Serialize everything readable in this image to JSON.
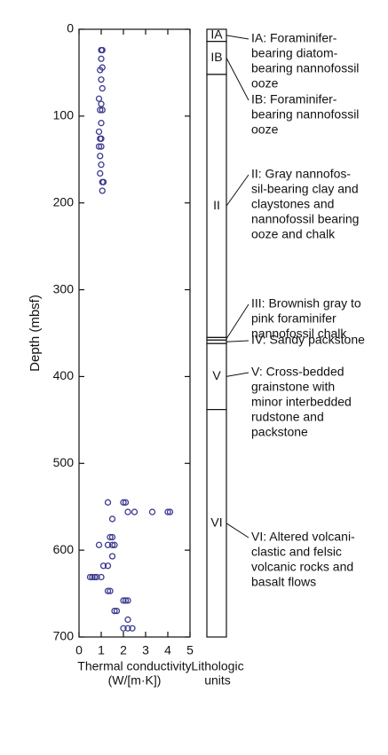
{
  "chart_data": {
    "type": "scatter",
    "ylabel": "Depth (mbsf)",
    "xlabel": [
      "Thermal conductivity",
      "(W/[m·K])"
    ],
    "xlim": [
      0,
      5
    ],
    "xticks": [
      0,
      1,
      2,
      3,
      4,
      5
    ],
    "ylim": [
      0,
      700
    ],
    "yticks": [
      0,
      100,
      200,
      300,
      400,
      500,
      600,
      700
    ],
    "y_inverted": true,
    "color": "#3b3b8f",
    "x": [
      1.0,
      1.05,
      1.0,
      1.05,
      0.95,
      1.0,
      1.05,
      0.9,
      1.0,
      0.95,
      1.05,
      1.0,
      0.9,
      0.95,
      1.0,
      0.9,
      1.0,
      0.95,
      1.0,
      0.95,
      1.1,
      1.05,
      1.05,
      1.3,
      2.0,
      2.1,
      2.2,
      2.5,
      3.3,
      4.0,
      4.1,
      1.5,
      1.5,
      1.4,
      0.9,
      1.3,
      1.5,
      1.6,
      1.5,
      1.1,
      1.3,
      0.6,
      0.5,
      0.7,
      0.8,
      1.0,
      1.3,
      1.4,
      2.1,
      2.0,
      2.2,
      1.7,
      1.6,
      2.2,
      2.0,
      2.4,
      2.2
    ],
    "y": [
      24,
      24,
      34,
      44,
      47,
      58,
      68,
      80,
      86,
      93,
      93,
      108,
      118,
      126,
      126,
      135,
      135,
      146,
      156,
      166,
      176,
      176,
      186,
      545,
      545,
      545,
      556,
      556,
      556,
      556,
      556,
      564,
      585,
      585,
      594,
      594,
      594,
      594,
      607,
      618,
      618,
      631,
      631,
      631,
      631,
      631,
      647,
      647,
      658,
      658,
      658,
      670,
      670,
      680,
      690,
      690,
      690
    ]
  },
  "lithology": {
    "title": [
      "Lithologic",
      "units"
    ],
    "units": [
      {
        "label": "IA",
        "top": 0,
        "bottom": 14,
        "description": [
          "IA: Foraminifer-",
          "bearing diatom-",
          "bearing nannofossil",
          "ooze"
        ]
      },
      {
        "label": "IB",
        "top": 14,
        "bottom": 52,
        "description": [
          "IB: Foraminifer-",
          "bearing nannofossil",
          "ooze"
        ]
      },
      {
        "label": "II",
        "top": 52,
        "bottom": 355,
        "description": [
          "II: Gray nannofos-",
          "sil-bearing clay and",
          "claystones and",
          "nannofossil bearing",
          "ooze and chalk"
        ]
      },
      {
        "top": 355,
        "bottom": 358,
        "description": [
          "III: Brownish gray to",
          "pink foraminifer",
          "nannofossil chalk"
        ]
      },
      {
        "top": 358,
        "bottom": 362,
        "description": [
          "IV: Sandy packstone"
        ]
      },
      {
        "label": "V",
        "top": 362,
        "bottom": 438,
        "description": [
          "V: Cross-bedded",
          "grainstone with",
          "minor interbedded",
          "rudstone and",
          "packstone"
        ]
      },
      {
        "label": "VI",
        "top": 438,
        "bottom": 700,
        "description": [
          "VI: Altered volcani-",
          "clastic and felsic",
          "volcanic rocks and",
          "basalt flows"
        ]
      }
    ]
  }
}
